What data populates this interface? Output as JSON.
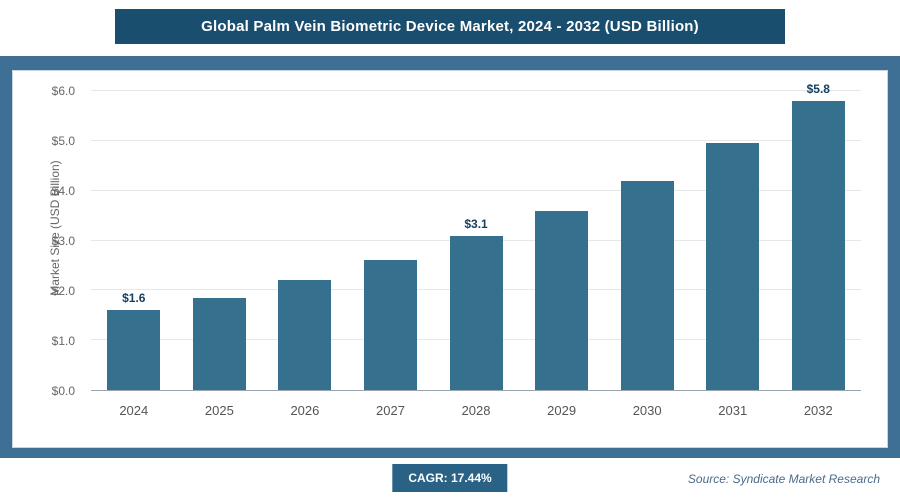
{
  "header": {
    "title": "Global Palm Vein Biometric Device Market, 2024 - 2032 (USD Billion)"
  },
  "chart_data": {
    "type": "bar",
    "categories": [
      "2024",
      "2025",
      "2026",
      "2027",
      "2028",
      "2029",
      "2030",
      "2031",
      "2032"
    ],
    "values": [
      1.6,
      1.85,
      2.2,
      2.6,
      3.1,
      3.6,
      4.2,
      4.95,
      5.8
    ],
    "point_labels": [
      "$1.6",
      "",
      "",
      "",
      "$3.1",
      "",
      "",
      "",
      "$5.8"
    ],
    "title": "Global Palm Vein Biometric Device Market, 2024 - 2032 (USD Billion)",
    "xlabel": "",
    "ylabel": "Market Size (USD Billion)",
    "ylim": [
      0,
      6
    ],
    "yticks": [
      "$0.0",
      "$1.0",
      "$2.0",
      "$3.0",
      "$4.0",
      "$5.0",
      "$6.0"
    ],
    "grid": "horizontal",
    "legend": "none",
    "bar_color": "#36708f"
  },
  "footer": {
    "cagr_label": "CAGR: 17.44%",
    "source": "Source: Syndicate Market Research"
  },
  "colors": {
    "header_bg": "#1a4e6e",
    "band_bg": "#3e7096",
    "bar": "#36708f",
    "badge_bg": "#2a6286",
    "data_label": "#17405f"
  }
}
